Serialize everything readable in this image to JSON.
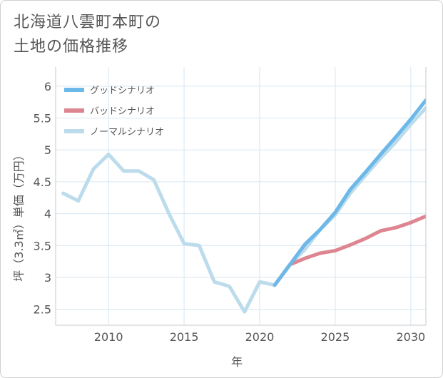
{
  "title": {
    "line1": "北海道八雲町本町の",
    "line2": "土地の価格推移"
  },
  "colors": {
    "good": "#6cb8e8",
    "bad": "#dd8590",
    "normal": "#bcdcec",
    "grid": "#d6e6f2",
    "axis_text": "#555555",
    "frame": "#c8c8c8"
  },
  "chart_data": {
    "type": "line",
    "title": "北海道八雲町本町の土地の価格推移",
    "xlabel": "年",
    "ylabel": "坪（3.3㎡）単価（万円）",
    "xlim": [
      2006.5,
      2031
    ],
    "ylim": [
      2.25,
      6.3
    ],
    "x_ticks": [
      2010,
      2015,
      2020,
      2025,
      2030
    ],
    "y_ticks": [
      2.5,
      3,
      3.5,
      4,
      4.5,
      5,
      5.5,
      6
    ],
    "grid": true,
    "legend_position": "top-left",
    "series": [
      {
        "name": "グッドシナリオ",
        "key": "good",
        "x": [
          2021,
          2022,
          2023,
          2024,
          2025,
          2026,
          2027,
          2028,
          2029,
          2030,
          2031
        ],
        "values": [
          2.88,
          3.2,
          3.52,
          3.75,
          4.02,
          4.38,
          4.65,
          4.93,
          5.2,
          5.48,
          5.78
        ]
      },
      {
        "name": "バッドシナリオ",
        "key": "bad",
        "x": [
          2021,
          2022,
          2023,
          2024,
          2025,
          2026,
          2027,
          2028,
          2029,
          2030,
          2031
        ],
        "values": [
          2.88,
          3.2,
          3.3,
          3.38,
          3.42,
          3.51,
          3.61,
          3.73,
          3.78,
          3.86,
          3.96
        ]
      },
      {
        "name": "ノーマルシナリオ",
        "key": "normal",
        "x": [
          2007,
          2008,
          2009,
          2010,
          2011,
          2012,
          2013,
          2014,
          2015,
          2016,
          2017,
          2018,
          2019,
          2020,
          2021,
          2022,
          2023,
          2024,
          2025,
          2026,
          2027,
          2028,
          2029,
          2030,
          2031
        ],
        "values": [
          4.32,
          4.2,
          4.7,
          4.93,
          4.67,
          4.67,
          4.53,
          4.0,
          3.53,
          3.5,
          2.93,
          2.86,
          2.46,
          2.93,
          2.88,
          3.2,
          3.44,
          3.75,
          3.98,
          4.32,
          4.6,
          4.87,
          5.12,
          5.4,
          5.66
        ]
      }
    ]
  }
}
